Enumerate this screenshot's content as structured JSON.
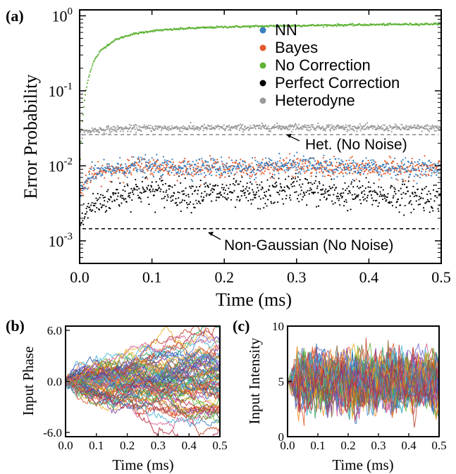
{
  "panel_labels": {
    "a": "(a)",
    "b": "(b)",
    "c": "(c)"
  },
  "chart_data": [
    {
      "panel": "(a)",
      "type": "scatter",
      "xlabel": "Time (ms)",
      "ylabel": "Error Probability",
      "xlim": [
        0.0,
        0.5
      ],
      "ylim": [
        0.0005,
        1.2
      ],
      "yscale": "log",
      "x_ticks": [
        "0.0",
        "0.1",
        "0.2",
        "0.3",
        "0.4",
        "0.5"
      ],
      "y_ticks": [
        {
          "base": "10",
          "exp": "0",
          "value": 1
        },
        {
          "base": "10",
          "exp": "-1",
          "value": 0.1
        },
        {
          "base": "10",
          "exp": "-2",
          "value": 0.01
        },
        {
          "base": "10",
          "exp": "-3",
          "value": 0.001
        }
      ],
      "legend_position": "upper-right",
      "series": [
        {
          "name": "NN",
          "color": "#3a7ebf",
          "x": [
            0.0,
            0.01,
            0.02,
            0.05,
            0.08,
            0.1,
            0.15,
            0.2,
            0.25,
            0.3,
            0.35,
            0.4,
            0.45,
            0.5
          ],
          "y": [
            0.004,
            0.0065,
            0.0078,
            0.0092,
            0.01,
            0.0098,
            0.0095,
            0.0097,
            0.0093,
            0.0102,
            0.0093,
            0.0095,
            0.0093,
            0.0092
          ]
        },
        {
          "name": "Bayes",
          "color": "#e35a2c",
          "x": [
            0.0,
            0.01,
            0.02,
            0.05,
            0.08,
            0.1,
            0.15,
            0.2,
            0.25,
            0.3,
            0.35,
            0.4,
            0.45,
            0.5
          ],
          "y": [
            0.004,
            0.0063,
            0.0076,
            0.009,
            0.0098,
            0.0096,
            0.0093,
            0.0095,
            0.0091,
            0.01,
            0.0091,
            0.0093,
            0.0091,
            0.009
          ]
        },
        {
          "name": "No Correction",
          "color": "#5fb336",
          "x": [
            0.0,
            0.005,
            0.01,
            0.02,
            0.03,
            0.05,
            0.07,
            0.1,
            0.15,
            0.2,
            0.3,
            0.4,
            0.5
          ],
          "y": [
            0.003,
            0.05,
            0.12,
            0.25,
            0.35,
            0.48,
            0.56,
            0.63,
            0.68,
            0.71,
            0.74,
            0.76,
            0.78
          ]
        },
        {
          "name": "Perfect Correction",
          "color": "#000000",
          "x": [
            0.0,
            0.01,
            0.02,
            0.05,
            0.08,
            0.1,
            0.15,
            0.2,
            0.25,
            0.3,
            0.35,
            0.4,
            0.45,
            0.5
          ],
          "y": [
            0.0016,
            0.0025,
            0.003,
            0.004,
            0.0048,
            0.0046,
            0.0042,
            0.0044,
            0.004,
            0.0052,
            0.0041,
            0.0042,
            0.0039,
            0.0038
          ]
        },
        {
          "name": "Heterodyne",
          "color": "#9a9a9a",
          "x": [
            0.0,
            0.01,
            0.02,
            0.05,
            0.1,
            0.2,
            0.3,
            0.4,
            0.5
          ],
          "y": [
            0.027,
            0.029,
            0.03,
            0.031,
            0.032,
            0.032,
            0.033,
            0.032,
            0.032
          ]
        }
      ],
      "reference_lines": [
        {
          "y": 0.026,
          "color": "#888888",
          "label": "Het. (No Noise)"
        },
        {
          "y": 0.00145,
          "color": "#000000",
          "label": "Non-Gaussian (No Noise)"
        }
      ]
    },
    {
      "panel": "(b)",
      "type": "line",
      "xlabel": "Time (ms)",
      "ylabel": "Input Phase",
      "xlim": [
        0.0,
        0.5
      ],
      "ylim": [
        -6.5,
        6.5
      ],
      "x_ticks": [
        "0.0",
        "0.1",
        "0.2",
        "0.3",
        "0.4",
        "0.5"
      ],
      "y_ticks": [
        {
          "label": "6.0",
          "value": 6.0
        },
        {
          "label": "0.0",
          "value": 0.0
        },
        {
          "label": "-6.0",
          "value": -6.0
        }
      ],
      "trajectories": {
        "count": 80,
        "start": 0.0,
        "final_spread": 6.0
      }
    },
    {
      "panel": "(c)",
      "type": "line",
      "xlabel": "Time (ms)",
      "ylabel": "Input Intensity",
      "xlim": [
        0.0,
        0.5
      ],
      "ylim": [
        0,
        10
      ],
      "x_ticks": [
        "0.0",
        "0.1",
        "0.2",
        "0.3",
        "0.4",
        "0.5"
      ],
      "y_ticks": [
        {
          "label": "10",
          "value": 10
        },
        {
          "label": "5",
          "value": 5
        },
        {
          "label": "0",
          "value": 0
        }
      ],
      "trajectories": {
        "count": 60,
        "start": 5.0,
        "mean": 5.0,
        "band": [
          1.5,
          8.5
        ]
      }
    }
  ]
}
